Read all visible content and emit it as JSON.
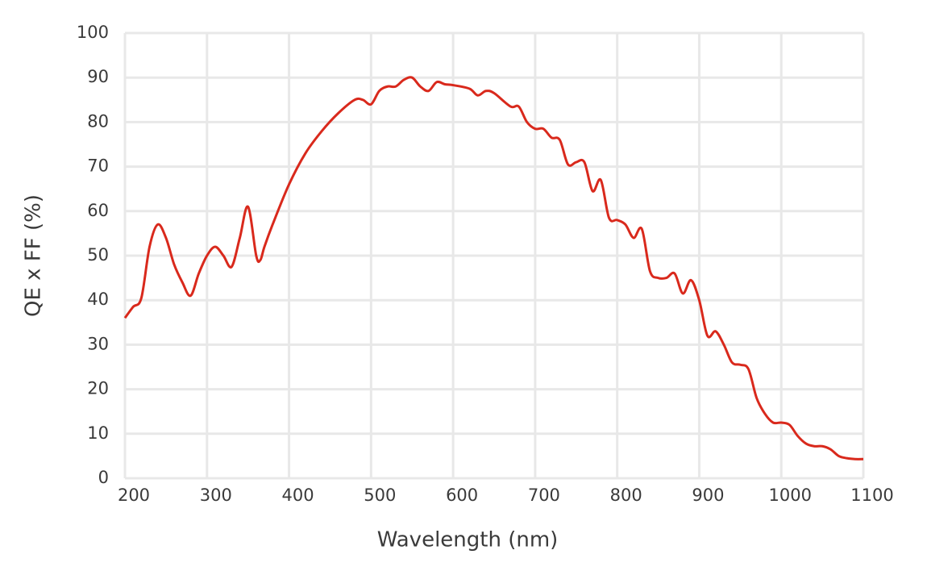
{
  "chart_data": {
    "type": "line",
    "xlabel": "Wavelength (nm)",
    "ylabel": "QE x FF (%)",
    "x": [
      200,
      210,
      220,
      230,
      240,
      250,
      260,
      270,
      280,
      290,
      300,
      310,
      320,
      330,
      340,
      350,
      360,
      365,
      370,
      380,
      400,
      420,
      440,
      460,
      480,
      490,
      500,
      510,
      520,
      530,
      540,
      550,
      560,
      570,
      580,
      590,
      600,
      620,
      630,
      640,
      650,
      670,
      680,
      690,
      700,
      710,
      720,
      730,
      740,
      750,
      760,
      770,
      780,
      790,
      800,
      810,
      820,
      830,
      840,
      850,
      860,
      870,
      880,
      890,
      900,
      910,
      920,
      930,
      940,
      950,
      960,
      970,
      980,
      990,
      1000,
      1010,
      1020,
      1030,
      1040,
      1050,
      1060,
      1070,
      1080,
      1090,
      1100
    ],
    "series": [
      {
        "name": "QE x FF",
        "color": "#d9291c",
        "values": [
          36,
          38.5,
          40.5,
          52,
          57,
          54,
          48,
          44,
          41,
          46,
          50,
          52,
          50,
          47.5,
          54,
          61,
          50,
          49,
          52,
          57,
          66,
          73,
          78,
          82,
          85,
          85,
          84,
          87,
          88,
          88,
          89.5,
          90,
          88,
          87,
          89,
          88.5,
          88.3,
          87.5,
          86,
          87,
          86.5,
          83.5,
          83.5,
          80,
          78.5,
          78.5,
          76.5,
          76,
          70.5,
          71,
          71,
          64.5,
          67,
          58.5,
          58,
          57,
          54,
          56,
          46.5,
          45,
          45,
          46,
          41.5,
          44.5,
          40,
          32,
          33,
          30,
          26,
          25.5,
          24.5,
          18,
          14.5,
          12.5,
          12.5,
          12,
          9.5,
          7.8,
          7.2,
          7.2,
          6.5,
          5,
          4.5,
          4.3,
          4.3
        ]
      }
    ],
    "xlim": [
      200,
      1100
    ],
    "xticks": [
      200,
      300,
      400,
      500,
      600,
      700,
      800,
      900,
      1000,
      1100
    ],
    "ylim": [
      0,
      100
    ],
    "yticks": [
      0,
      10,
      20,
      30,
      40,
      50,
      60,
      70,
      80,
      90,
      100
    ],
    "grid": true
  }
}
